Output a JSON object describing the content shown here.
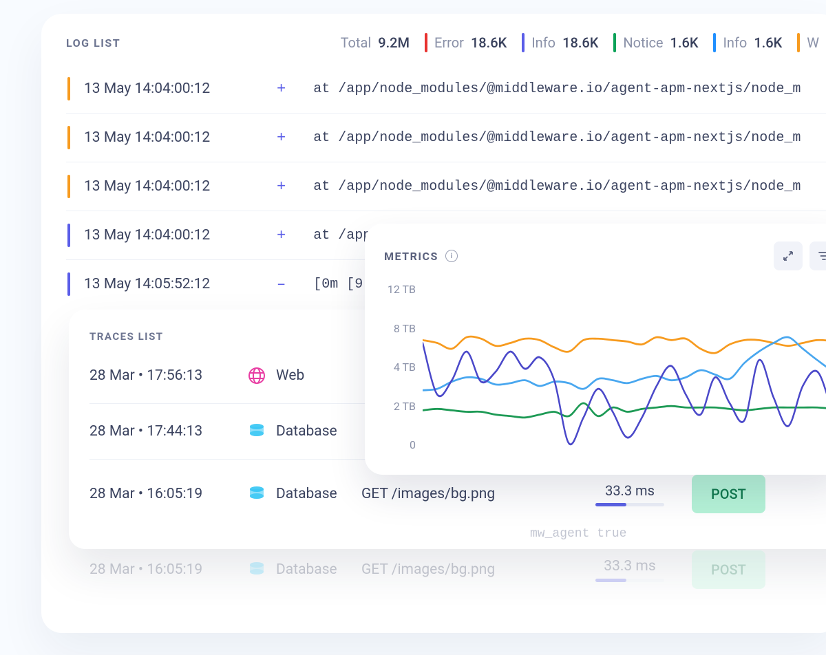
{
  "log_panel": {
    "title": "LOG LIST",
    "stats": [
      {
        "label": "Total",
        "value": "9.2M",
        "bar_color": null
      },
      {
        "label": "Error",
        "value": "18.6K",
        "bar_color": "#e8322f"
      },
      {
        "label": "Info",
        "value": "18.6K",
        "bar_color": "#5a5de8"
      },
      {
        "label": "Notice",
        "value": "1.6K",
        "bar_color": "#0aa258"
      },
      {
        "label": "Info",
        "value": "1.6K",
        "bar_color": "#1f8fff"
      },
      {
        "label": "W",
        "value": "",
        "bar_color": "#f79b1f"
      }
    ],
    "rows": [
      {
        "bar_color": "#f79b1f",
        "timestamp": "13 May 14:04:00:12",
        "expand": "+",
        "message": "at /app/node_modules/@middleware.io/agent-apm-nextjs/node_m"
      },
      {
        "bar_color": "#f79b1f",
        "timestamp": "13 May 14:04:00:12",
        "expand": "+",
        "message": "at /app/node_modules/@middleware.io/agent-apm-nextjs/node_m"
      },
      {
        "bar_color": "#f79b1f",
        "timestamp": "13 May 14:04:00:12",
        "expand": "+",
        "message": "at /app/node_modules/@middleware.io/agent-apm-nextjs/node_m"
      },
      {
        "bar_color": "#5a5de8",
        "timestamp": "13 May 14:04:00:12",
        "expand": "+",
        "message": "at /app/node_modules/@middleware.io/agent-apm-nextjs/node_m"
      },
      {
        "bar_color": "#5a5de8",
        "timestamp": "13 May 14:05:52:12",
        "expand": "–",
        "message": "[0m [9"
      }
    ]
  },
  "traces_panel": {
    "title": "TRACES LIST",
    "rows": [
      {
        "timestamp": "28 Mar • 17:56:13",
        "type": "Web",
        "icon": "web",
        "icon_color": "#e83ea3",
        "endpoint": "",
        "duration": "",
        "progress": null,
        "badge": null
      },
      {
        "timestamp": "28 Mar • 17:44:13",
        "type": "Database",
        "icon": "db",
        "icon_color": "#34c5f4",
        "endpoint": "",
        "duration": "",
        "progress": null,
        "badge": null
      },
      {
        "timestamp": "28 Mar • 16:05:19",
        "type": "Database",
        "icon": "db",
        "icon_color": "#34c5f4",
        "endpoint": "GET /images/bg.png",
        "duration": "33.3 ms",
        "progress": 0.45,
        "badge": {
          "text": "POST",
          "bg": "#b5f2d7",
          "fg": "#107a4e"
        }
      }
    ],
    "ghost_row": {
      "timestamp": "28 Mar • 16:05:19",
      "type": "Database",
      "icon_color": "#34c5f4",
      "endpoint": "GET /images/bg.png",
      "duration": "33.3 ms",
      "progress": 0.45,
      "badge": {
        "text": "POST",
        "bg": "#b5f2d7",
        "fg": "#107a4e"
      }
    },
    "mw_agent_text": "mw_agent  true"
  },
  "metrics_panel": {
    "title": "METRICS",
    "y_axis": [
      "12 TB",
      "8 TB",
      "4 TB",
      "2 TB",
      "0"
    ],
    "ylim": [
      0,
      12
    ],
    "series": [
      {
        "name": "orange",
        "color": "#f79b1f",
        "width": 2.8,
        "points": [
          8.0,
          7.8,
          7.4,
          8.2,
          8.1,
          7.6,
          7.8,
          8.1,
          8.0,
          7.5,
          7.2,
          8.0,
          8.1,
          8.0,
          7.9,
          7.7,
          8.2,
          8.0,
          8.1,
          7.4,
          7.1,
          7.7,
          8.0,
          8.0,
          7.8,
          7.6,
          7.8,
          8.0,
          7.9,
          7.5
        ]
      },
      {
        "name": "blue",
        "color": "#49a7ef",
        "width": 2.8,
        "points": [
          4.5,
          4.6,
          5.1,
          5.4,
          5.3,
          4.9,
          5.0,
          5.2,
          4.8,
          5.1,
          5.0,
          4.6,
          5.3,
          5.2,
          5.0,
          5.3,
          5.5,
          5.2,
          5.4,
          5.9,
          5.6,
          5.3,
          6.4,
          7.2,
          7.8,
          8.2,
          7.4,
          6.6,
          5.9,
          5.6
        ]
      },
      {
        "name": "green",
        "color": "#1d9a55",
        "width": 2.8,
        "points": [
          3.1,
          3.2,
          3.1,
          3.0,
          3.0,
          2.8,
          2.7,
          2.6,
          2.8,
          3.0,
          2.7,
          3.6,
          2.7,
          3.3,
          3.0,
          3.2,
          3.3,
          3.4,
          3.3,
          3.3,
          3.3,
          3.2,
          3.1,
          3.2,
          3.3,
          3.3,
          3.3,
          3.3,
          3.2,
          3.0
        ]
      },
      {
        "name": "purple",
        "color": "#4a48c9",
        "width": 2.8,
        "points": [
          7.8,
          4.2,
          5.2,
          7.2,
          5.1,
          5.8,
          7.2,
          6.0,
          6.8,
          5.2,
          0.8,
          2.6,
          4.6,
          3.0,
          1.2,
          2.6,
          4.8,
          6.2,
          4.2,
          2.8,
          5.4,
          3.6,
          2.4,
          6.6,
          4.0,
          2.0,
          4.8,
          5.8,
          3.2,
          1.0
        ]
      }
    ]
  }
}
